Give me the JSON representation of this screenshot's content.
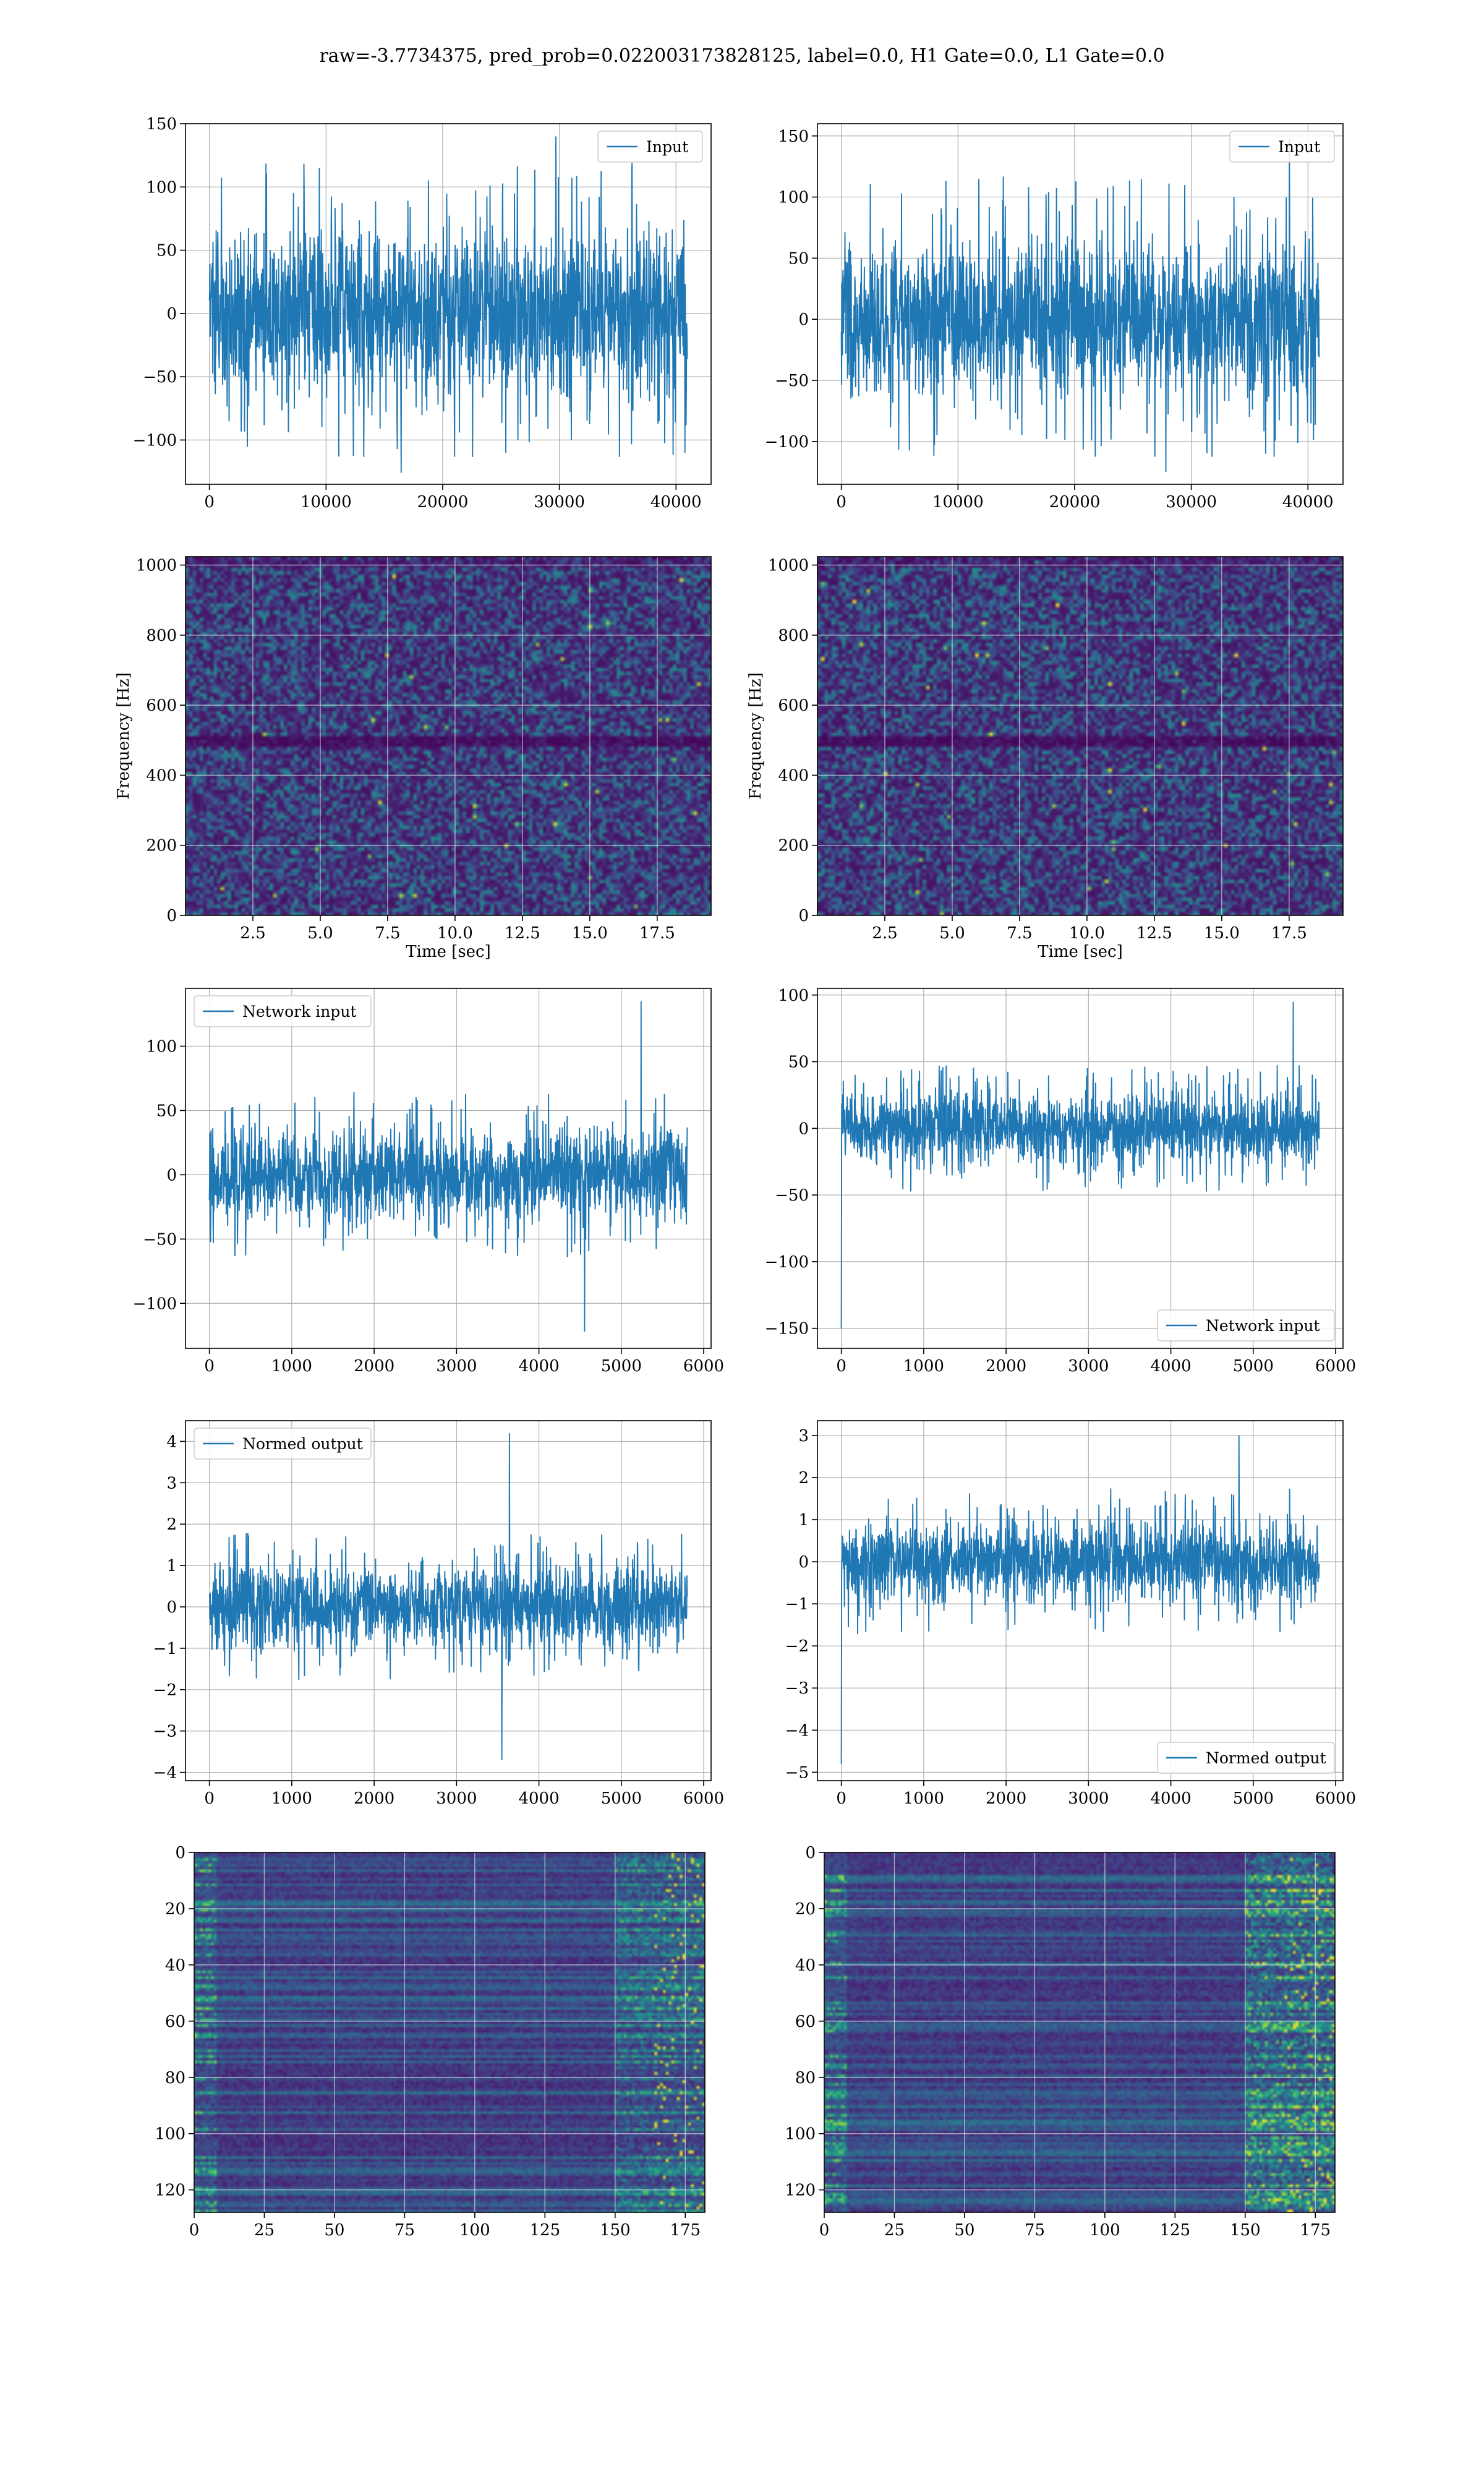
{
  "figure": {
    "suptitle": "raw=-3.7734375, pred_prob=0.022003173828125, label=0.0, H1 Gate=0.0, L1 Gate=0.0"
  },
  "colors": {
    "line": "#1f77b4",
    "grid": "#b0b0b0",
    "viridis": [
      "#440154",
      "#482878",
      "#3e4a89",
      "#31688e",
      "#26828e",
      "#1f9e89",
      "#35b779",
      "#6ece58",
      "#b5de2b",
      "#fde725"
    ]
  },
  "chart_data": [
    {
      "id": "input-h1",
      "type": "line",
      "position": "row1-left",
      "series": [
        {
          "name": "Input",
          "n": 40960,
          "envelope_min": -126,
          "envelope_max": 140,
          "typical_abs": 70
        }
      ],
      "legend": "upper right",
      "xlim": [
        -2048,
        43008
      ],
      "ylim": [
        -135,
        150
      ],
      "xticks": [
        0,
        10000,
        20000,
        30000,
        40000
      ],
      "xtick_labels": [
        "0",
        "10000",
        "20000",
        "30000",
        "40000"
      ],
      "yticks": [
        -100,
        -50,
        0,
        50,
        100,
        150
      ],
      "ytick_labels": [
        "−100",
        "−50",
        "0",
        "50",
        "100",
        "150"
      ],
      "grid": true
    },
    {
      "id": "input-l1",
      "type": "line",
      "position": "row1-right",
      "series": [
        {
          "name": "Input",
          "n": 40960,
          "envelope_min": -125,
          "envelope_max": 148,
          "typical_abs": 68
        }
      ],
      "legend": "upper right",
      "xlim": [
        -2048,
        43008
      ],
      "ylim": [
        -135,
        160
      ],
      "xticks": [
        0,
        10000,
        20000,
        30000,
        40000
      ],
      "xtick_labels": [
        "0",
        "10000",
        "20000",
        "30000",
        "40000"
      ],
      "yticks": [
        -100,
        -50,
        0,
        50,
        100,
        150
      ],
      "ytick_labels": [
        "−100",
        "−50",
        "0",
        "50",
        "100",
        "150"
      ],
      "grid": true
    },
    {
      "id": "spectrogram-h1",
      "type": "heatmap",
      "position": "row2-left",
      "xlabel": "Time [sec]",
      "ylabel": "Frequency [Hz]",
      "xlim": [
        0,
        19.5
      ],
      "ylim": [
        0,
        1024
      ],
      "xticks": [
        2.5,
        5.0,
        7.5,
        10.0,
        12.5,
        15.0,
        17.5
      ],
      "xtick_labels": [
        "2.5",
        "5.0",
        "7.5",
        "10.0",
        "12.5",
        "15.0",
        "17.5"
      ],
      "yticks": [
        0,
        200,
        400,
        600,
        800,
        1000
      ],
      "ytick_labels": [
        "0",
        "200",
        "400",
        "600",
        "800",
        "1000"
      ],
      "colormap": "viridis",
      "features": [
        "broadband noise",
        "dark band near 500 Hz"
      ],
      "grid": true
    },
    {
      "id": "spectrogram-l1",
      "type": "heatmap",
      "position": "row2-right",
      "xlabel": "Time [sec]",
      "ylabel": "Frequency [Hz]",
      "xlim": [
        0,
        19.5
      ],
      "ylim": [
        0,
        1024
      ],
      "xticks": [
        2.5,
        5.0,
        7.5,
        10.0,
        12.5,
        15.0,
        17.5
      ],
      "xtick_labels": [
        "2.5",
        "5.0",
        "7.5",
        "10.0",
        "12.5",
        "15.0",
        "17.5"
      ],
      "yticks": [
        0,
        200,
        400,
        600,
        800,
        1000
      ],
      "ytick_labels": [
        "0",
        "200",
        "400",
        "600",
        "800",
        "1000"
      ],
      "colormap": "viridis",
      "features": [
        "broadband noise",
        "dark band near 500 Hz"
      ],
      "grid": true
    },
    {
      "id": "network-input-h1",
      "type": "line",
      "position": "row3-left",
      "series": [
        {
          "name": "Network input",
          "n": 5800,
          "envelope_min": -122,
          "envelope_max": 135,
          "typical_abs": 38
        }
      ],
      "legend": "upper left",
      "xlim": [
        -290,
        6090
      ],
      "ylim": [
        -135,
        145
      ],
      "xticks": [
        0,
        1000,
        2000,
        3000,
        4000,
        5000,
        6000
      ],
      "xtick_labels": [
        "0",
        "1000",
        "2000",
        "3000",
        "4000",
        "5000",
        "6000"
      ],
      "yticks": [
        -100,
        -50,
        0,
        50,
        100
      ],
      "ytick_labels": [
        "−100",
        "−50",
        "0",
        "50",
        "100"
      ],
      "grid": true
    },
    {
      "id": "network-input-l1",
      "type": "line",
      "position": "row3-right",
      "series": [
        {
          "name": "Network input",
          "n": 5800,
          "envelope_min": -150,
          "envelope_max": 95,
          "typical_abs": 28,
          "start_value": -150
        }
      ],
      "legend": "lower right",
      "xlim": [
        -290,
        6090
      ],
      "ylim": [
        -165,
        105
      ],
      "xticks": [
        0,
        1000,
        2000,
        3000,
        4000,
        5000,
        6000
      ],
      "xtick_labels": [
        "0",
        "1000",
        "2000",
        "3000",
        "4000",
        "5000",
        "6000"
      ],
      "yticks": [
        -150,
        -100,
        -50,
        0,
        50,
        100
      ],
      "ytick_labels": [
        "−150",
        "−100",
        "−50",
        "0",
        "50",
        "100"
      ],
      "grid": true
    },
    {
      "id": "normed-output-h1",
      "type": "line",
      "position": "row4-left",
      "series": [
        {
          "name": "Normed output",
          "n": 5800,
          "envelope_min": -3.7,
          "envelope_max": 4.2,
          "typical_abs": 1.05
        }
      ],
      "legend": "upper left",
      "xlim": [
        -290,
        6090
      ],
      "ylim": [
        -4.2,
        4.5
      ],
      "xticks": [
        0,
        1000,
        2000,
        3000,
        4000,
        5000,
        6000
      ],
      "xtick_labels": [
        "0",
        "1000",
        "2000",
        "3000",
        "4000",
        "5000",
        "6000"
      ],
      "yticks": [
        -4,
        -3,
        -2,
        -1,
        0,
        1,
        2,
        3,
        4
      ],
      "ytick_labels": [
        "−4",
        "−3",
        "−2",
        "−1",
        "0",
        "1",
        "2",
        "3",
        "4"
      ],
      "grid": true
    },
    {
      "id": "normed-output-l1",
      "type": "line",
      "position": "row4-right",
      "series": [
        {
          "name": "Normed output",
          "n": 5800,
          "envelope_min": -4.8,
          "envelope_max": 3.0,
          "typical_abs": 1.05,
          "start_value": -4.8
        }
      ],
      "legend": "lower right",
      "xlim": [
        -290,
        6090
      ],
      "ylim": [
        -5.2,
        3.35
      ],
      "xticks": [
        0,
        1000,
        2000,
        3000,
        4000,
        5000,
        6000
      ],
      "xtick_labels": [
        "0",
        "1000",
        "2000",
        "3000",
        "4000",
        "5000",
        "6000"
      ],
      "yticks": [
        -5,
        -4,
        -3,
        -2,
        -1,
        0,
        1,
        2,
        3
      ],
      "ytick_labels": [
        "−5",
        "−4",
        "−3",
        "−2",
        "−1",
        "0",
        "1",
        "2",
        "3"
      ],
      "grid": true
    },
    {
      "id": "feature-map-h1",
      "type": "heatmap",
      "position": "row5-left",
      "xlim": [
        0,
        182
      ],
      "ylim": [
        128,
        0
      ],
      "xticks": [
        0,
        25,
        50,
        75,
        100,
        125,
        150,
        175
      ],
      "xtick_labels": [
        "0",
        "25",
        "50",
        "75",
        "100",
        "125",
        "150",
        "175"
      ],
      "yticks": [
        0,
        20,
        40,
        60,
        80,
        100,
        120
      ],
      "ytick_labels": [
        "0",
        "20",
        "40",
        "60",
        "80",
        "100",
        "120"
      ],
      "colormap": "viridis",
      "features": [
        "horizontal row striping",
        "brighter columns near x=0 and x=150-182"
      ],
      "grid": true
    },
    {
      "id": "feature-map-l1",
      "type": "heatmap",
      "position": "row5-right",
      "xlim": [
        0,
        182
      ],
      "ylim": [
        128,
        0
      ],
      "xticks": [
        0,
        25,
        50,
        75,
        100,
        125,
        150,
        175
      ],
      "xtick_labels": [
        "0",
        "25",
        "50",
        "75",
        "100",
        "125",
        "150",
        "175"
      ],
      "yticks": [
        0,
        20,
        40,
        60,
        80,
        100,
        120
      ],
      "ytick_labels": [
        "0",
        "20",
        "40",
        "60",
        "80",
        "100",
        "120"
      ],
      "colormap": "viridis",
      "features": [
        "horizontal row striping",
        "bright region near x=150-182"
      ],
      "grid": true
    }
  ]
}
